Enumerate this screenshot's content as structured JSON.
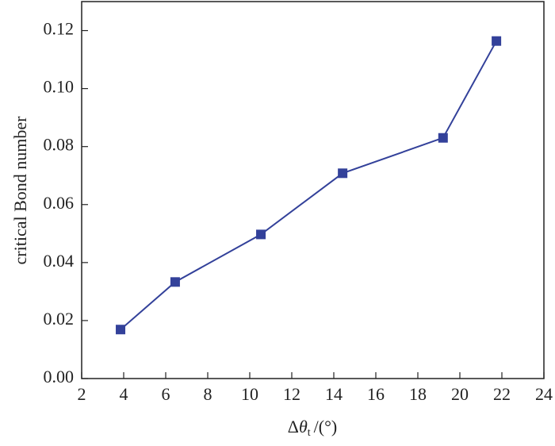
{
  "chart_data": {
    "type": "line",
    "x_label": {
      "symbol": "Δ",
      "variable": "θ",
      "subscript": "t",
      "unit": "/(°)"
    },
    "y_label": "critical Bond number",
    "x": [
      3.85,
      6.45,
      10.53,
      14.42,
      19.2,
      21.74
    ],
    "series": [
      {
        "name": "critical Bond number",
        "color": "#33419a",
        "values": [
          0.0169,
          0.0333,
          0.0497,
          0.0708,
          0.083,
          0.1164
        ]
      }
    ],
    "xlim": [
      2,
      24
    ],
    "xticks": [
      2,
      4,
      6,
      8,
      10,
      12,
      14,
      16,
      18,
      20,
      22,
      24
    ],
    "ylim": [
      0,
      0.13
    ],
    "yticks": [
      {
        "value": 0,
        "label": "0.00"
      },
      {
        "value": 0.02,
        "label": "0.02"
      },
      {
        "value": 0.04,
        "label": "0.04"
      },
      {
        "value": 0.06,
        "label": "0.06"
      },
      {
        "value": 0.08,
        "label": "0.08"
      },
      {
        "value": 0.1,
        "label": "0.10"
      },
      {
        "value": 0.12,
        "label": "0.12"
      }
    ],
    "grid": false
  }
}
